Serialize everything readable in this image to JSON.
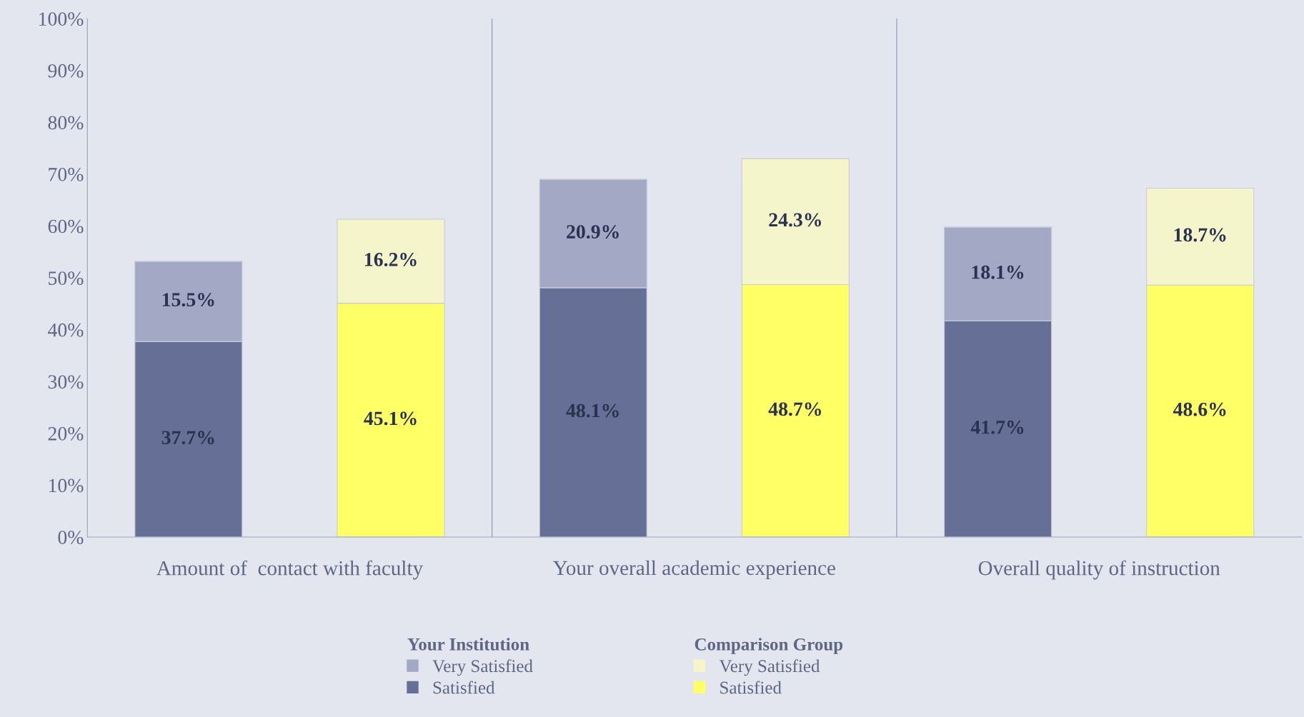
{
  "chart_data": {
    "type": "bar",
    "stacked": true,
    "categories": [
      null,
      null,
      null,
      null,
      null,
      null
    ],
    "series": [
      {
        "name": "Satisfied",
        "color": "#666f96",
        "values": [
          37.7,
          null,
          48.1,
          null,
          41.7,
          null
        ],
        "value_labels": [
          "37.7%",
          null,
          "48.1%",
          null,
          "41.7%",
          null
        ]
      },
      {
        "name": "Very Satisfied",
        "color": "#a3a8c4",
        "values": [
          15.5,
          null,
          20.9,
          null,
          18.1,
          null
        ],
        "value_labels": [
          "15.5%",
          null,
          "20.9%",
          null,
          "18.1%",
          null
        ]
      },
      {
        "name": "Satisfied",
        "color": "#ffff66",
        "values": [
          null,
          45.1,
          null,
          48.7,
          null,
          48.6
        ],
        "value_labels": [
          null,
          "45.1%",
          null,
          "48.7%",
          null,
          "48.6%"
        ]
      },
      {
        "name": "Very Satisfied",
        "color": "#f5f5cc",
        "values": [
          null,
          16.2,
          null,
          24.3,
          null,
          18.7
        ],
        "value_labels": [
          null,
          "16.2%",
          null,
          "24.3%",
          null,
          "18.7%"
        ]
      }
    ],
    "annotations": [
      "Amount of  contact with faculty",
      "Your overall academic experience",
      "Overall quality of instruction",
      "Your Institution",
      "Comparison Group"
    ],
    "ylim": [
      0,
      100
    ],
    "yticks": [
      {
        "value": 0,
        "label": "0%"
      },
      {
        "value": 10,
        "label": "10%"
      },
      {
        "value": 20,
        "label": "20%"
      },
      {
        "value": 30,
        "label": "30%"
      },
      {
        "value": 40,
        "label": "40%"
      },
      {
        "value": 50,
        "label": "50%"
      },
      {
        "value": 60,
        "label": "60%"
      },
      {
        "value": 70,
        "label": "70%"
      },
      {
        "value": 80,
        "label": "80%"
      },
      {
        "value": 90,
        "label": "90%"
      },
      {
        "value": 100,
        "label": "100%"
      }
    ],
    "grid": false,
    "legend": "bottom"
  }
}
